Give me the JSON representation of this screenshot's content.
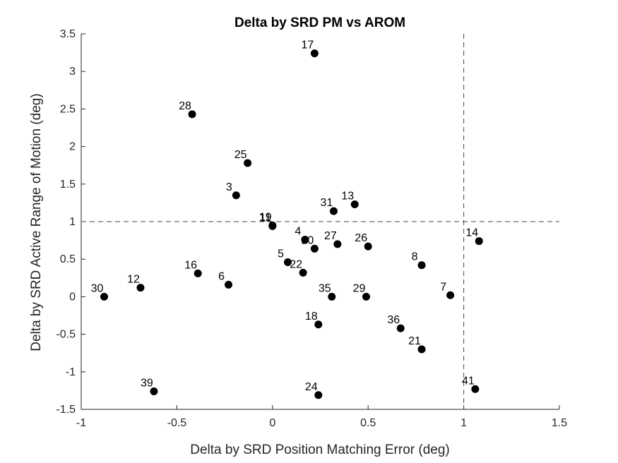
{
  "chart_data": {
    "type": "scatter",
    "title": "Delta by SRD PM vs AROM",
    "xlabel": "Delta by SRD Position Matching Error (deg)",
    "ylabel": "Delta by SRD Active Range of Motion (deg)",
    "xlim": [
      -1,
      1.5
    ],
    "ylim": [
      -1.5,
      3.5
    ],
    "xticks": [
      "-1",
      "-0.5",
      "0",
      "0.5",
      "1",
      "1.5"
    ],
    "yticks": [
      "-1.5",
      "-1",
      "-0.5",
      "0",
      "0.5",
      "1",
      "1.5",
      "2",
      "2.5",
      "3",
      "3.5"
    ],
    "reference_lines": {
      "x": 1,
      "y": 1,
      "style": "dashed"
    },
    "grid": false,
    "marker_color": "#000000",
    "points": [
      {
        "label": "17",
        "x": 0.22,
        "y": 3.24
      },
      {
        "label": "28",
        "x": -0.42,
        "y": 2.43
      },
      {
        "label": "25",
        "x": -0.13,
        "y": 1.78
      },
      {
        "label": "3",
        "x": -0.19,
        "y": 1.35
      },
      {
        "label": "31",
        "x": 0.32,
        "y": 1.14
      },
      {
        "label": "13",
        "x": 0.43,
        "y": 1.23
      },
      {
        "label": "19",
        "x": 0.0,
        "y": 0.95
      },
      {
        "label": "11",
        "x": 0.0,
        "y": 0.94
      },
      {
        "label": "14",
        "x": 1.08,
        "y": 0.74
      },
      {
        "label": "4",
        "x": 0.17,
        "y": 0.76
      },
      {
        "label": "20",
        "x": 0.22,
        "y": 0.64
      },
      {
        "label": "27",
        "x": 0.34,
        "y": 0.7
      },
      {
        "label": "26",
        "x": 0.5,
        "y": 0.67
      },
      {
        "label": "5",
        "x": 0.08,
        "y": 0.46
      },
      {
        "label": "8",
        "x": 0.78,
        "y": 0.42
      },
      {
        "label": "22",
        "x": 0.16,
        "y": 0.32
      },
      {
        "label": "16",
        "x": -0.39,
        "y": 0.31
      },
      {
        "label": "6",
        "x": -0.23,
        "y": 0.16
      },
      {
        "label": "12",
        "x": -0.69,
        "y": 0.12
      },
      {
        "label": "30",
        "x": -0.88,
        "y": 0.0
      },
      {
        "label": "35",
        "x": 0.31,
        "y": 0.0
      },
      {
        "label": "29",
        "x": 0.49,
        "y": 0.0
      },
      {
        "label": "7",
        "x": 0.93,
        "y": 0.02
      },
      {
        "label": "18",
        "x": 0.24,
        "y": -0.37
      },
      {
        "label": "36",
        "x": 0.67,
        "y": -0.42
      },
      {
        "label": "21",
        "x": 0.78,
        "y": -0.7
      },
      {
        "label": "39",
        "x": -0.62,
        "y": -1.26
      },
      {
        "label": "24",
        "x": 0.24,
        "y": -1.31
      },
      {
        "label": "41",
        "x": 1.06,
        "y": -1.23
      }
    ]
  }
}
